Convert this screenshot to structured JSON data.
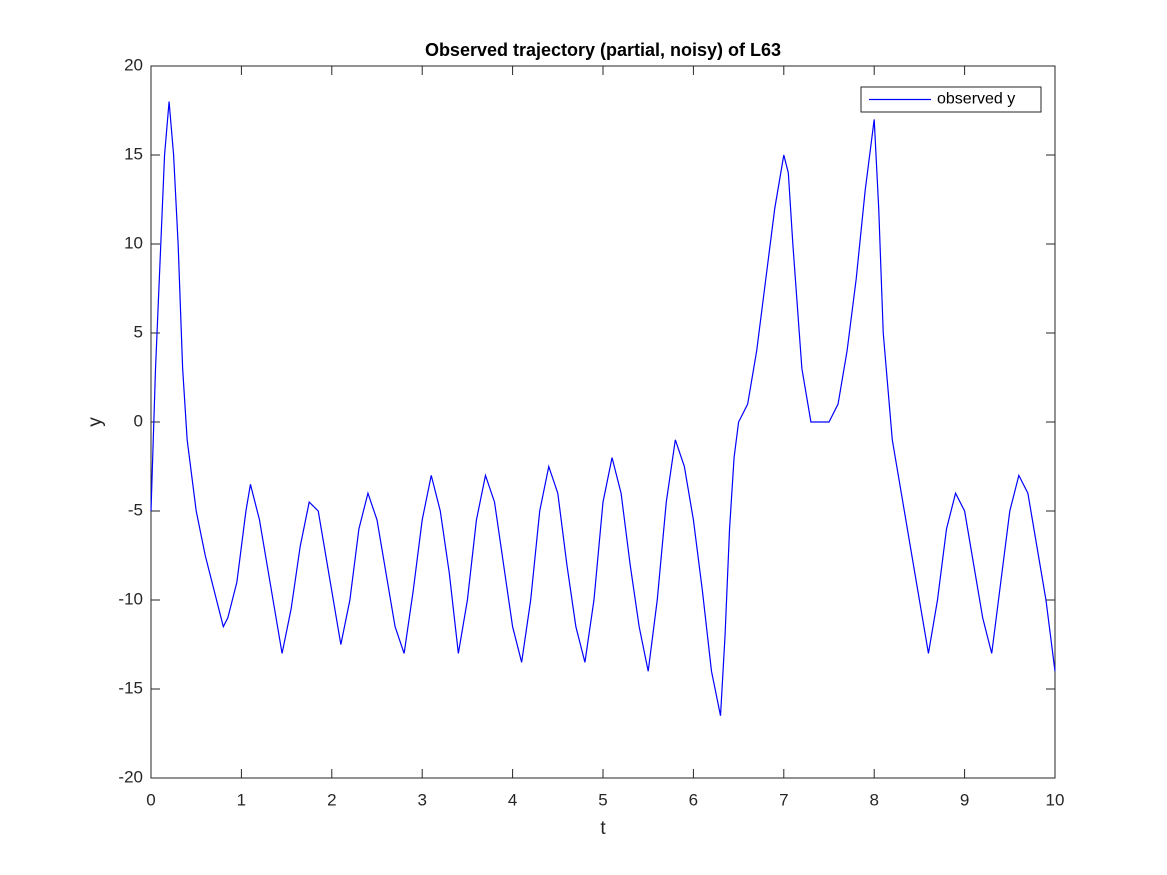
{
  "chart_data": {
    "type": "line",
    "title": "Observed trajectory (partial, noisy) of L63",
    "x_label": "t",
    "y_label": "y",
    "x": [
      0,
      0.05,
      0.1,
      0.15,
      0.2,
      0.25,
      0.3,
      0.35,
      0.4,
      0.45,
      0.5,
      0.6,
      0.7,
      0.8,
      0.85,
      0.95,
      1.05,
      1.1,
      1.2,
      1.3,
      1.4,
      1.45,
      1.55,
      1.65,
      1.75,
      1.85,
      1.95,
      2.05,
      2.1,
      2.2,
      2.3,
      2.4,
      2.5,
      2.6,
      2.7,
      2.8,
      2.9,
      3.0,
      3.1,
      3.2,
      3.3,
      3.4,
      3.5,
      3.6,
      3.7,
      3.8,
      3.9,
      4.0,
      4.1,
      4.2,
      4.3,
      4.4,
      4.5,
      4.6,
      4.7,
      4.8,
      4.9,
      5.0,
      5.1,
      5.2,
      5.3,
      5.4,
      5.5,
      5.6,
      5.7,
      5.8,
      5.9,
      6.0,
      6.1,
      6.2,
      6.3,
      6.35,
      6.4,
      6.45,
      6.5,
      6.6,
      6.7,
      6.8,
      6.9,
      7.0,
      7.05,
      7.1,
      7.2,
      7.3,
      7.4,
      7.5,
      7.6,
      7.7,
      7.8,
      7.9,
      8.0,
      8.05,
      8.1,
      8.2,
      8.3,
      8.4,
      8.5,
      8.6,
      8.7,
      8.8,
      8.9,
      9.0,
      9.1,
      9.2,
      9.3,
      9.4,
      9.5,
      9.6,
      9.7,
      9.8,
      9.9,
      10
    ],
    "series": [
      {
        "name": "observed y",
        "color": "#0000ff",
        "values": [
          -5,
          3,
          9,
          15,
          18,
          15,
          10,
          3,
          -1,
          -3,
          -5,
          -7.5,
          -9.5,
          -11.5,
          -11,
          -9,
          -5,
          -3.5,
          -5.5,
          -8.5,
          -11.5,
          -13,
          -10.5,
          -7,
          -4.5,
          -5,
          -8,
          -11,
          -12.5,
          -10,
          -6,
          -4,
          -5.5,
          -8.5,
          -11.5,
          -13,
          -9.5,
          -5.5,
          -3,
          -5,
          -8.5,
          -13,
          -10,
          -5.5,
          -3,
          -4.5,
          -8,
          -11.5,
          -13.5,
          -10,
          -5,
          -2.5,
          -4,
          -8,
          -11.5,
          -13.5,
          -10,
          -4.5,
          -2,
          -4,
          -8,
          -11.5,
          -14,
          -10,
          -4.5,
          -1,
          -2.5,
          -5.5,
          -9.5,
          -14,
          -16.5,
          -12,
          -6,
          -2,
          0,
          1,
          4,
          8,
          12,
          15,
          14,
          10,
          3,
          0,
          0,
          0,
          1,
          4,
          8,
          13,
          17,
          12,
          5,
          -1,
          -4,
          -7,
          -10,
          -13,
          -10,
          -6,
          -4,
          -5,
          -8,
          -11,
          -13,
          -9,
          -5,
          -3,
          -4,
          -7,
          -10,
          -14
        ]
      }
    ],
    "xlim": [
      0,
      10
    ],
    "xticks": [
      0,
      1,
      2,
      3,
      4,
      5,
      6,
      7,
      8,
      9,
      10
    ],
    "ylim": [
      -20,
      20
    ],
    "yticks": [
      -20,
      -15,
      -10,
      -5,
      0,
      5,
      10,
      15,
      20
    ],
    "legend": "top-right",
    "grid": false
  }
}
